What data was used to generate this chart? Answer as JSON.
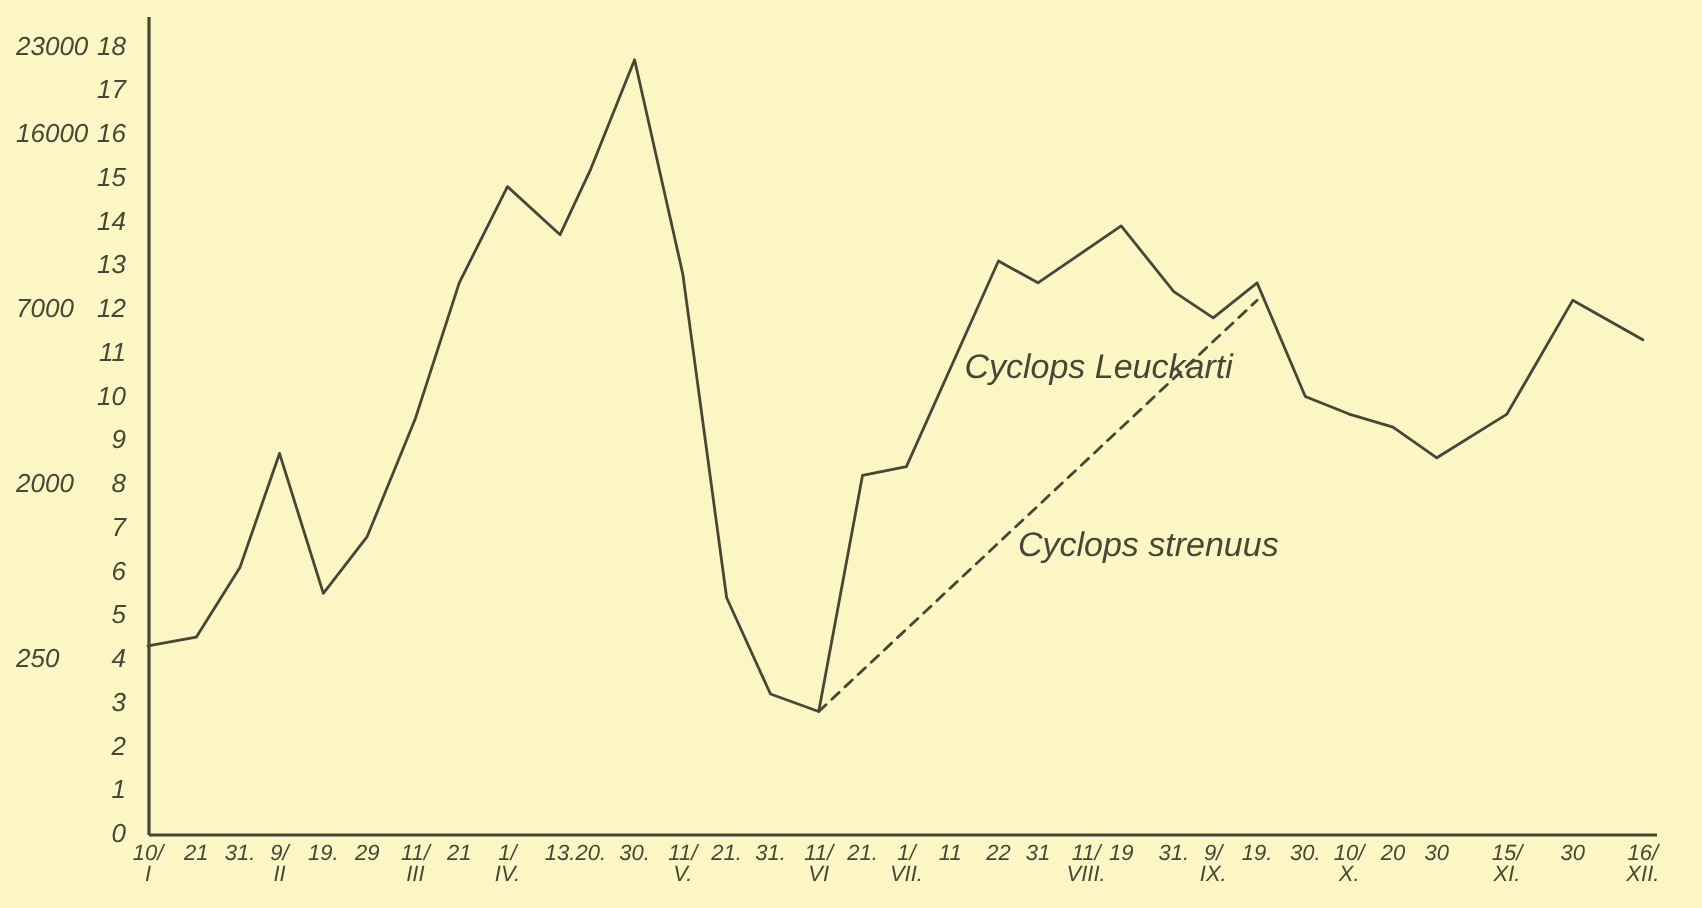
{
  "chart_data": {
    "type": "line",
    "x": [
      "--01-10",
      "--01-21",
      "--01-31",
      "--02-09",
      "--02-19",
      "--02-29",
      "--03-11",
      "--03-21",
      "--04-01",
      "--04-13",
      "--04-20",
      "--04-30",
      "--05-11",
      "--05-21",
      "--05-31",
      "--06-11",
      "--06-21",
      "--07-01",
      "--07-22",
      "--07-31",
      "--08-19",
      "--08-31",
      "--09-09",
      "--09-19",
      "--09-30",
      "--10-10",
      "--10-20",
      "--10-30",
      "--11-15",
      "--11-30",
      "--12-16"
    ],
    "series": [
      {
        "name": "Cyclops Leuckarti",
        "color": "#4a4637",
        "values": [
          4.3,
          4.5,
          6.1,
          8.7,
          5.5,
          6.8,
          9.5,
          12.6,
          14.8,
          13.7,
          15.2,
          17.7,
          12.8,
          5.4,
          3.2,
          2.8,
          8.2,
          8.4,
          13.1,
          12.6,
          13.9,
          12.4,
          11.8,
          12.6,
          10.0,
          9.6,
          9.3,
          8.6,
          9.6,
          12.2,
          11.3
        ]
      },
      {
        "name": "Cyclops strenuus",
        "color": "#4a4637",
        "line_style": "dashed",
        "x": [
          "--06-11",
          "--09-19"
        ],
        "values": [
          2.8,
          12.2
        ]
      }
    ],
    "xlim": [
      "--01-10",
      "--12-19"
    ],
    "xticks": [
      {
        "value": "--01-10",
        "label": "10/I"
      },
      {
        "value": "--01-21",
        "label": "21"
      },
      {
        "value": "--01-31",
        "label": "31."
      },
      {
        "value": "--02-09",
        "label": "9/II"
      },
      {
        "value": "--02-19",
        "label": "19."
      },
      {
        "value": "--02-29",
        "label": "29"
      },
      {
        "value": "--03-11",
        "label": "11/III"
      },
      {
        "value": "--03-21",
        "label": "21"
      },
      {
        "value": "--04-01",
        "label": "1/IV."
      },
      {
        "value": "--04-13",
        "label": "13."
      },
      {
        "value": "--04-20",
        "label": "20."
      },
      {
        "value": "--04-30",
        "label": "30."
      },
      {
        "value": "--05-11",
        "label": "11/V."
      },
      {
        "value": "--05-21",
        "label": "21."
      },
      {
        "value": "--05-31",
        "label": "31."
      },
      {
        "value": "--06-11",
        "label": "11/VI"
      },
      {
        "value": "--06-21",
        "label": "21."
      },
      {
        "value": "--07-01",
        "label": "1/VII."
      },
      {
        "value": "--07-11",
        "label": "11"
      },
      {
        "value": "--07-22",
        "label": "22"
      },
      {
        "value": "--07-31",
        "label": "31"
      },
      {
        "value": "--08-11",
        "label": "11/VIII."
      },
      {
        "value": "--08-19",
        "label": "19"
      },
      {
        "value": "--08-31",
        "label": "31."
      },
      {
        "value": "--09-09",
        "label": "9/IX."
      },
      {
        "value": "--09-19",
        "label": "19."
      },
      {
        "value": "--09-30",
        "label": "30."
      },
      {
        "value": "--10-10",
        "label": "10/X."
      },
      {
        "value": "--10-20",
        "label": "20"
      },
      {
        "value": "--10-30",
        "label": "30"
      },
      {
        "value": "--11-15",
        "label": "15/XI."
      },
      {
        "value": "--11-30",
        "label": "30"
      },
      {
        "value": "--12-16",
        "label": "16/XII."
      }
    ],
    "ylim": [
      0,
      18.7
    ],
    "yticks": [
      0,
      1,
      2,
      3,
      4,
      5,
      6,
      7,
      8,
      9,
      10,
      11,
      12,
      13,
      14,
      15,
      16,
      17,
      18
    ],
    "annotations": [
      "250",
      "2000",
      "7000",
      "16000",
      "23000"
    ]
  }
}
